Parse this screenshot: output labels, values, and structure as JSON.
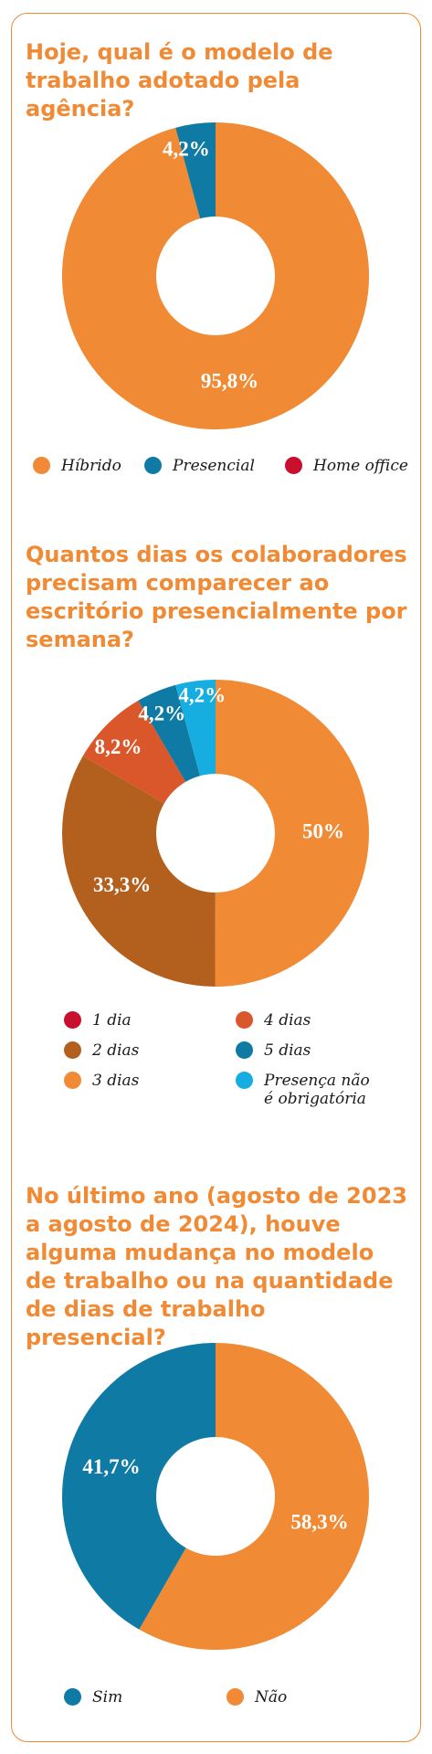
{
  "colors": {
    "accent": "#f08a34",
    "hibrido": "#f08a34",
    "presencial": "#0f7aa3",
    "home_office": "#c8102e",
    "one_day": "#c8102e",
    "two_days": "#b35f1e",
    "three_days": "#f08a34",
    "four_days": "#d9572a",
    "five_days": "#0f7aa3",
    "not_required": "#16aee0",
    "sim": "#0f7aa3",
    "nao": "#f08a34"
  },
  "chart_data": [
    {
      "type": "pie",
      "title": "Hoje, qual é o modelo de trabalho adotado pela agência?",
      "slices": [
        {
          "name": "Híbrido",
          "value": 95.8,
          "label": "95,8%",
          "color_key": "hibrido"
        },
        {
          "name": "Presencial",
          "value": 4.2,
          "label": "4,2%",
          "color_key": "presencial"
        },
        {
          "name": "Home office",
          "value": 0,
          "label": "",
          "color_key": "home_office"
        }
      ],
      "legend": [
        {
          "label": "Híbrido",
          "color_key": "hibrido"
        },
        {
          "label": "Presencial",
          "color_key": "presencial"
        },
        {
          "label": "Home office",
          "color_key": "home_office"
        }
      ]
    },
    {
      "type": "pie",
      "title": "Quantos dias os colaboradores precisam comparecer ao escritório presencialmente por semana?",
      "slices": [
        {
          "name": "3 dias",
          "value": 50,
          "label": "50%",
          "color_key": "three_days"
        },
        {
          "name": "2 dias",
          "value": 33.3,
          "label": "33,3%",
          "color_key": "two_days"
        },
        {
          "name": "4 dias",
          "value": 8.2,
          "label": "8,2%",
          "color_key": "four_days"
        },
        {
          "name": "5 dias",
          "value": 4.2,
          "label": "4,2%",
          "color_key": "five_days"
        },
        {
          "name": "Presença não é obrigatória",
          "value": 4.2,
          "label": "4,2%",
          "color_key": "not_required"
        },
        {
          "name": "1 dia",
          "value": 0,
          "label": "",
          "color_key": "one_day"
        }
      ],
      "legend": [
        {
          "label": "1 dia",
          "color_key": "one_day"
        },
        {
          "label": "4 dias",
          "color_key": "four_days"
        },
        {
          "label": "2 dias",
          "color_key": "two_days"
        },
        {
          "label": "5 dias",
          "color_key": "five_days"
        },
        {
          "label": "3 dias",
          "color_key": "three_days"
        },
        {
          "label": "Presença não\né obrigatória",
          "color_key": "not_required"
        }
      ]
    },
    {
      "type": "pie",
      "title": "No último ano (agosto de 2023 a agosto de 2024), houve alguma mudança no modelo de trabalho ou na quantidade de dias de trabalho presencial?",
      "slices": [
        {
          "name": "Não",
          "value": 58.3,
          "label": "58,3%",
          "color_key": "nao"
        },
        {
          "name": "Sim",
          "value": 41.7,
          "label": "41,7%",
          "color_key": "sim"
        }
      ],
      "legend": [
        {
          "label": "Sim",
          "color_key": "sim"
        },
        {
          "label": "Não",
          "color_key": "nao"
        }
      ]
    }
  ]
}
